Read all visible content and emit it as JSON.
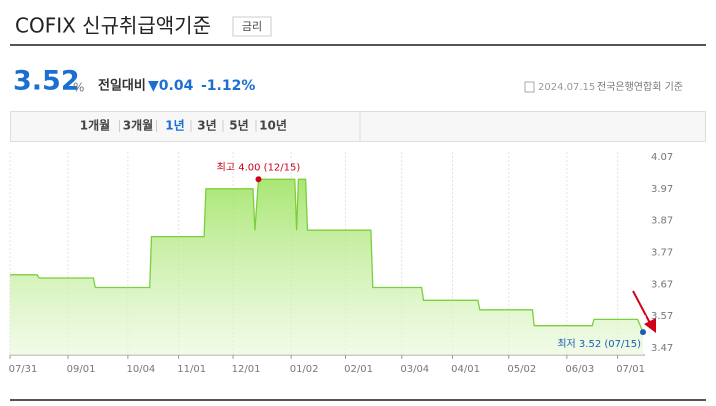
{
  "header": {
    "title": "COFIX 신규취급액기준",
    "badge": "금리"
  },
  "quote": {
    "value": "3.52",
    "unit": "%",
    "change_label": "전일대비",
    "change": "▼0.04",
    "change_pct": "-1.12%",
    "date": "2024.07.15",
    "source": "전국은행연합회 기준"
  },
  "tabs": [
    "1개월",
    "3개월",
    "1년",
    "3년",
    "5년",
    "10년"
  ],
  "active_tab": 2,
  "chart_data": {
    "type": "line",
    "x": [
      "07/31",
      "08/15",
      "08/16",
      "09/15",
      "09/16",
      "10/16",
      "10/17",
      "11/15",
      "11/16",
      "12/12",
      "12/13",
      "12/15",
      "01/04",
      "01/05",
      "01/06",
      "01/10",
      "01/11",
      "02/15",
      "02/16",
      "03/15",
      "03/16",
      "04/15",
      "04/16",
      "05/15",
      "05/16",
      "06/17",
      "06/18",
      "07/12",
      "07/15"
    ],
    "values": [
      3.7,
      3.7,
      3.69,
      3.69,
      3.66,
      3.66,
      3.82,
      3.82,
      3.97,
      3.97,
      3.84,
      4.0,
      4.0,
      3.84,
      4.0,
      4.0,
      3.84,
      3.84,
      3.66,
      3.66,
      3.62,
      3.62,
      3.59,
      3.59,
      3.54,
      3.54,
      3.56,
      3.56,
      3.52
    ],
    "color": "#7ccf3a",
    "ylim": [
      3.47,
      4.07
    ],
    "yticks": [
      3.47,
      3.57,
      3.67,
      3.77,
      3.87,
      3.97,
      4.07
    ],
    "xticks": [
      "07/31",
      "09/01",
      "10/04",
      "11/01",
      "12/01",
      "01/02",
      "02/01",
      "03/04",
      "04/01",
      "05/02",
      "06/03",
      "07/01"
    ],
    "grid": true,
    "annotations": [
      {
        "text": "최고 4.00 (12/15)",
        "point": 11,
        "color": "#d0021b"
      },
      {
        "text": "최저 3.52 (07/15)",
        "point": 28,
        "color": "#1a5fb4"
      }
    ]
  }
}
